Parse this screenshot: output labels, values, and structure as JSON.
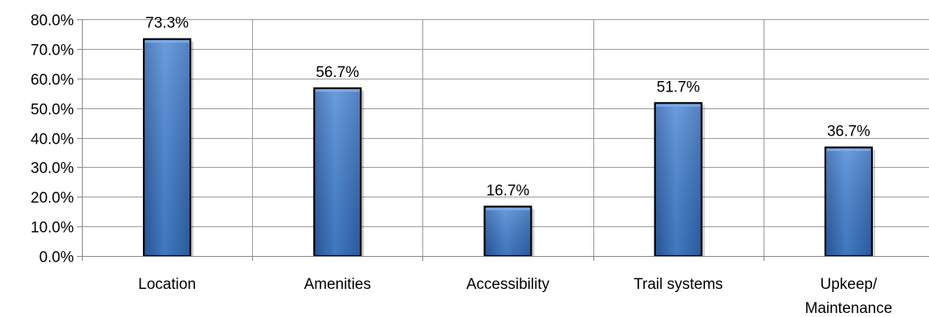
{
  "chart_data": {
    "type": "bar",
    "title": "",
    "xlabel": "",
    "ylabel": "",
    "categories": [
      "Location",
      "Amenities",
      "Accessibility",
      "Trail systems",
      "Upkeep/ Maintenance"
    ],
    "category_lines": [
      [
        "Location"
      ],
      [
        "Amenities"
      ],
      [
        "Accessibility"
      ],
      [
        "Trail systems"
      ],
      [
        "Upkeep/",
        "Maintenance"
      ]
    ],
    "values": [
      73.3,
      56.7,
      16.7,
      51.7,
      36.7
    ],
    "data_labels": [
      "73.3%",
      "56.7%",
      "16.7%",
      "51.7%",
      "36.7%"
    ],
    "ylim": [
      0,
      80
    ],
    "y_ticks": [
      0,
      10,
      20,
      30,
      40,
      50,
      60,
      70,
      80
    ],
    "y_tick_labels": [
      "0.0%",
      "10.0%",
      "20.0%",
      "30.0%",
      "40.0%",
      "50.0%",
      "60.0%",
      "70.0%",
      "80.0%"
    ],
    "grid": "both",
    "legend": "none",
    "bar_color": "#3c78cc",
    "bar_edge_color": "#000000",
    "grid_color": "#999999"
  }
}
